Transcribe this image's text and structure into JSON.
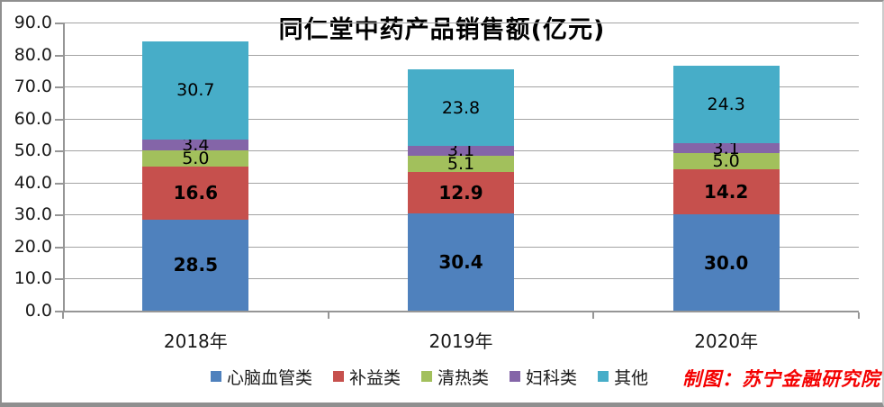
{
  "chart_data": {
    "type": "bar",
    "stacked": true,
    "title": "同仁堂中药产品销售额(亿元)",
    "categories": [
      "2018年",
      "2019年",
      "2020年"
    ],
    "series": [
      {
        "name": "心脑血管类",
        "color": "#4F81BD",
        "bold_labels": true,
        "values": [
          28.5,
          30.4,
          30.0
        ]
      },
      {
        "name": "补益类",
        "color": "#C6504D",
        "bold_labels": true,
        "values": [
          16.6,
          12.9,
          14.2
        ]
      },
      {
        "name": "清热类",
        "color": "#A2C05C",
        "bold_labels": false,
        "values": [
          5.0,
          5.1,
          5.0
        ]
      },
      {
        "name": "妇科类",
        "color": "#8465A8",
        "bold_labels": false,
        "values": [
          3.4,
          3.1,
          3.1
        ]
      },
      {
        "name": "其他",
        "color": "#47ADC8",
        "bold_labels": false,
        "values": [
          30.7,
          23.8,
          24.3
        ]
      }
    ],
    "ylim": [
      0,
      90
    ],
    "ytick_step": 10,
    "ytick_labels": [
      "0.0",
      "10.0",
      "20.0",
      "30.0",
      "40.0",
      "50.0",
      "60.0",
      "70.0",
      "80.0",
      "90.0"
    ],
    "grid": true,
    "legend_position": "bottom",
    "value_label_decimals": 1
  },
  "watermark": {
    "text": "制图：苏宁金融研究院",
    "color": "#F40000"
  }
}
